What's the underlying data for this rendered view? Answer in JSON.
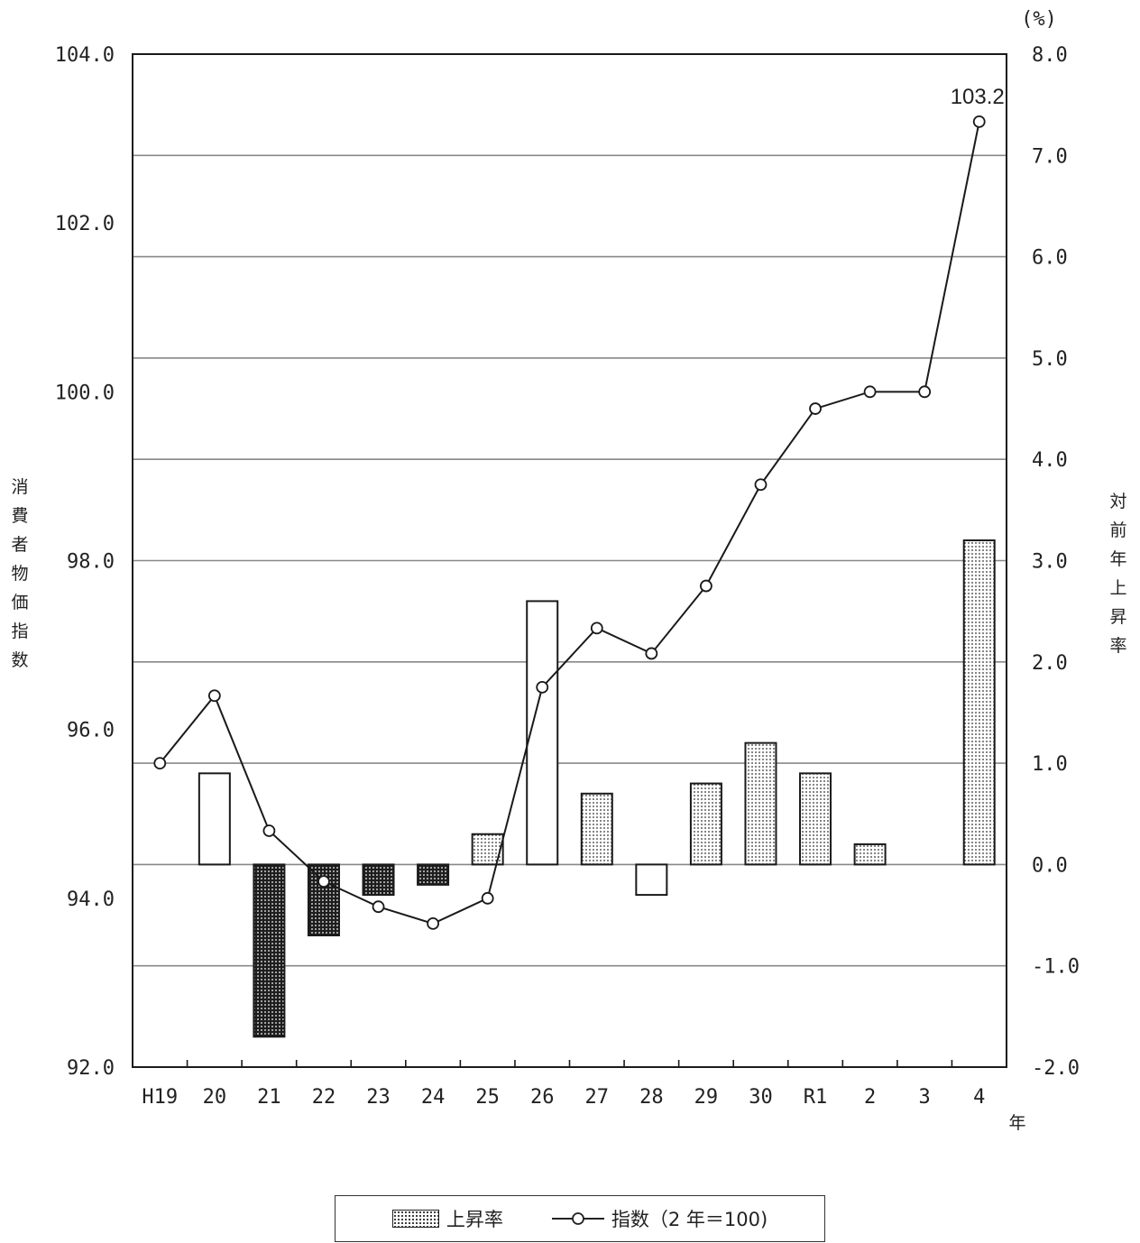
{
  "chart_data": {
    "type": "bar",
    "categories": [
      "H19",
      "20",
      "21",
      "22",
      "23",
      "24",
      "25",
      "26",
      "27",
      "28",
      "29",
      "30",
      "R1",
      "2",
      "3",
      "4"
    ],
    "x_unit_label": "年",
    "left_axis": {
      "label": "消費者物価指数",
      "ylim": [
        92.0,
        104.0
      ],
      "ticks": [
        "92.0",
        "94.0",
        "96.0",
        "98.0",
        "100.0",
        "102.0",
        "104.0"
      ]
    },
    "right_axis": {
      "label": "対前年上昇率",
      "unit": "(%)",
      "ylim": [
        -2.0,
        8.0
      ],
      "ticks": [
        "-2.0",
        "-1.0",
        "0.0",
        "1.0",
        "2.0",
        "3.0",
        "4.0",
        "5.0",
        "6.0",
        "7.0",
        "8.0"
      ]
    },
    "series": [
      {
        "name": "上昇率",
        "type": "bar",
        "axis": "right",
        "values": [
          0.0,
          0.9,
          -1.7,
          -0.7,
          -0.3,
          -0.2,
          0.3,
          2.6,
          0.7,
          -0.3,
          0.8,
          1.2,
          0.9,
          0.2,
          0.0,
          3.2
        ],
        "styles": [
          "none",
          "white",
          "dark",
          "dark",
          "dark",
          "dark",
          "dotted",
          "white",
          "dotted",
          "white",
          "dotted",
          "dotted",
          "dotted",
          "dotted",
          "none",
          "dotted"
        ]
      },
      {
        "name": "指数（2 年＝100)",
        "type": "line",
        "axis": "left",
        "values": [
          95.6,
          96.4,
          94.8,
          94.2,
          93.9,
          93.7,
          94.0,
          96.5,
          97.2,
          96.9,
          97.7,
          98.9,
          99.8,
          100.0,
          100.0,
          103.2
        ]
      }
    ],
    "annotations": [
      {
        "category": "4",
        "text": "103.2"
      }
    ],
    "grid": true,
    "legend": "bottom-center"
  },
  "legend": {
    "bar_label": "上昇率",
    "line_label": "指数（2 年＝100)"
  }
}
